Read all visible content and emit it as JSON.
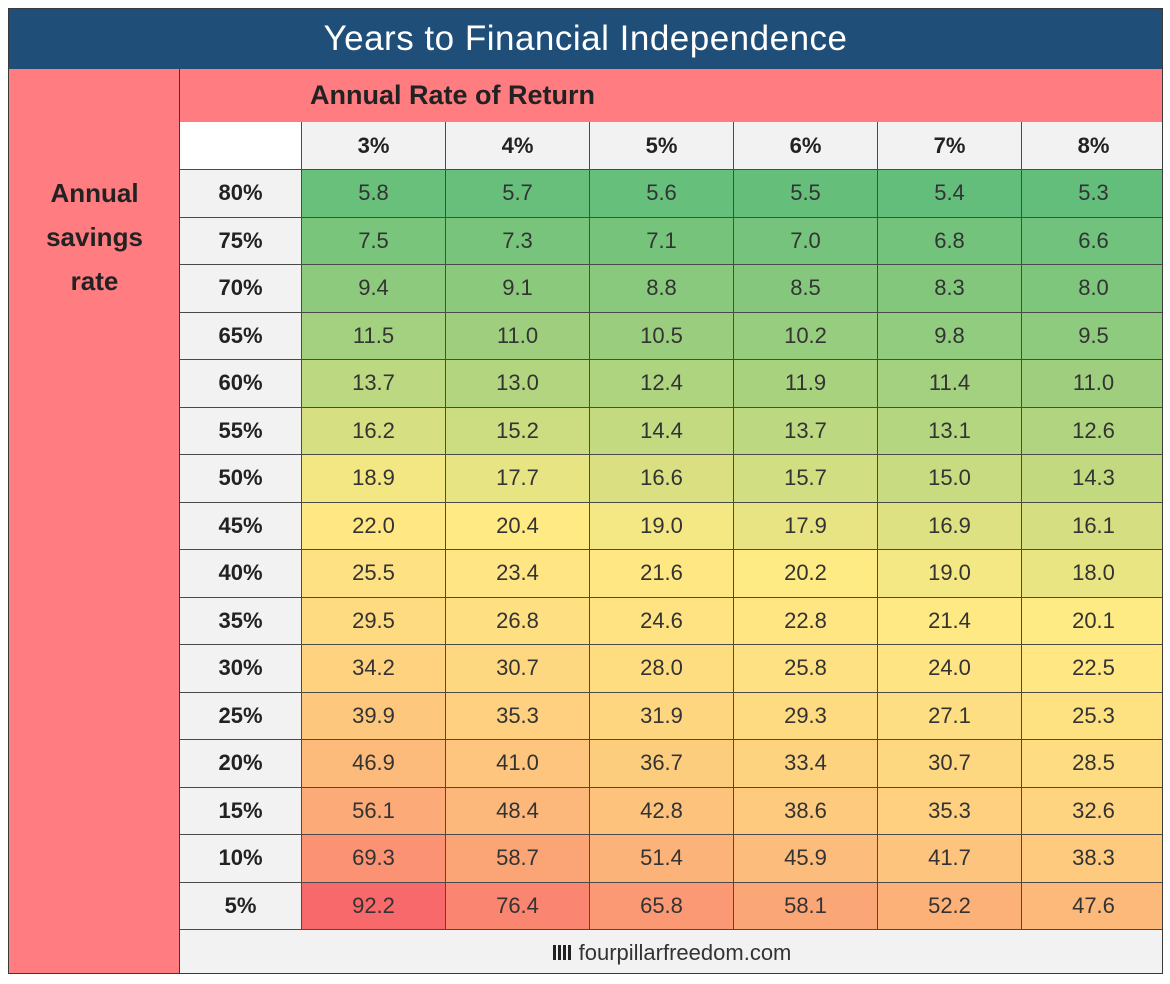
{
  "title": "Years to Financial Independence",
  "row_axis_label": [
    "Annual",
    "savings",
    "rate"
  ],
  "column_axis_label": "Annual Rate of Return",
  "footer": "fourpillarfreedom.com",
  "colors": {
    "title_bg": "#1f4e79",
    "label_bg": "#ff7c80",
    "header_bg": "#f2f2f2",
    "scale_low": "#63be7b",
    "scale_mid": "#ffeb84",
    "scale_high": "#f8696b"
  },
  "chart_data": {
    "type": "table",
    "title": "Years to Financial Independence",
    "xlabel": "Annual Rate of Return",
    "ylabel": "Annual savings rate",
    "columns": [
      "3%",
      "4%",
      "5%",
      "6%",
      "7%",
      "8%"
    ],
    "rows": [
      "80%",
      "75%",
      "70%",
      "65%",
      "60%",
      "55%",
      "50%",
      "45%",
      "40%",
      "35%",
      "30%",
      "25%",
      "20%",
      "15%",
      "10%",
      "5%"
    ],
    "values": [
      [
        "5.8",
        "5.7",
        "5.6",
        "5.5",
        "5.4",
        "5.3"
      ],
      [
        "7.5",
        "7.3",
        "7.1",
        "7.0",
        "6.8",
        "6.6"
      ],
      [
        "9.4",
        "9.1",
        "8.8",
        "8.5",
        "8.3",
        "8.0"
      ],
      [
        "11.5",
        "11.0",
        "10.5",
        "10.2",
        "9.8",
        "9.5"
      ],
      [
        "13.7",
        "13.0",
        "12.4",
        "11.9",
        "11.4",
        "11.0"
      ],
      [
        "16.2",
        "15.2",
        "14.4",
        "13.7",
        "13.1",
        "12.6"
      ],
      [
        "18.9",
        "17.7",
        "16.6",
        "15.7",
        "15.0",
        "14.3"
      ],
      [
        "22.0",
        "20.4",
        "19.0",
        "17.9",
        "16.9",
        "16.1"
      ],
      [
        "25.5",
        "23.4",
        "21.6",
        "20.2",
        "19.0",
        "18.0"
      ],
      [
        "29.5",
        "26.8",
        "24.6",
        "22.8",
        "21.4",
        "20.1"
      ],
      [
        "34.2",
        "30.7",
        "28.0",
        "25.8",
        "24.0",
        "22.5"
      ],
      [
        "39.9",
        "35.3",
        "31.9",
        "29.3",
        "27.1",
        "25.3"
      ],
      [
        "46.9",
        "41.0",
        "36.7",
        "33.4",
        "30.7",
        "28.5"
      ],
      [
        "56.1",
        "48.4",
        "42.8",
        "38.6",
        "35.3",
        "32.6"
      ],
      [
        "69.3",
        "58.7",
        "51.4",
        "45.9",
        "41.7",
        "38.3"
      ],
      [
        "92.2",
        "76.4",
        "65.8",
        "58.1",
        "52.2",
        "47.6"
      ]
    ]
  }
}
